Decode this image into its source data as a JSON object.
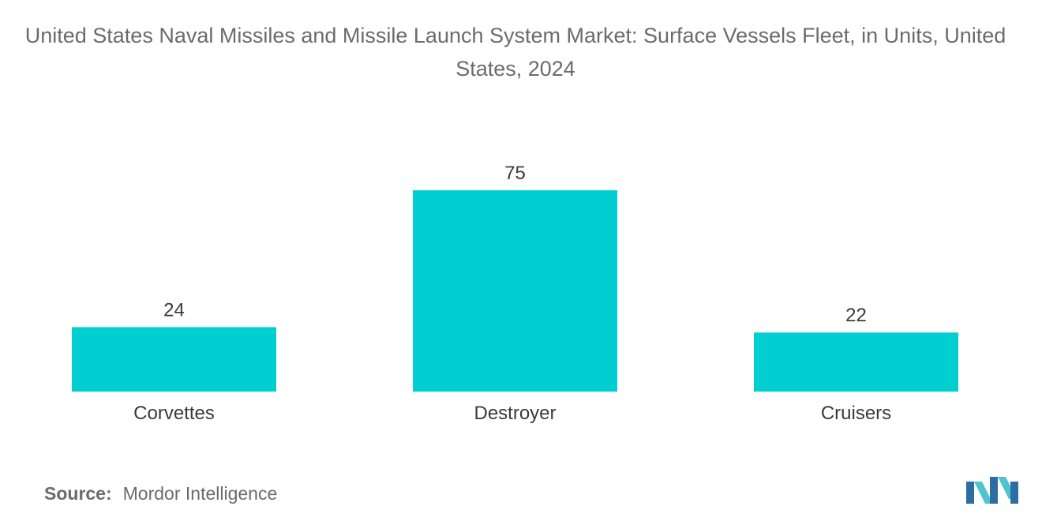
{
  "chart_data": {
    "type": "bar",
    "title": "United States Naval Missiles and Missile Launch System Market: Surface Vessels Fleet, in Units, United States, 2024",
    "categories": [
      "Corvettes",
      "Destroyer",
      "Cruisers"
    ],
    "values": [
      24,
      75,
      22
    ],
    "data_labels": [
      "24",
      "75",
      "22"
    ],
    "xlabel": "",
    "ylabel": "",
    "ylim": [
      0,
      75
    ],
    "grid": false,
    "legend": "none",
    "bar_color": "#00CED1"
  },
  "source": {
    "label": "Source:",
    "value": "Mordor Intelligence"
  },
  "logo": {
    "icon": "mordor-intelligence-logo",
    "colors": [
      "#2E6DA4",
      "#4FC3D0"
    ]
  }
}
